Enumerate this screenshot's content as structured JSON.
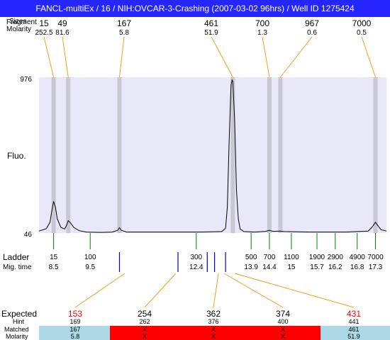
{
  "title": "FANCL-multiEx / 16 / NIH:OVCAR-3-Crashing (2007-03-02 96hrs) / Well ID 1275424",
  "labels": {
    "fragment_row": "Fragment",
    "size_row": "Sizes",
    "molarity_row": "Molarity",
    "y_axis": "Fluo.",
    "ladder_row": "Ladder",
    "migtime_row": "Mig. time",
    "expected_row": "Expected",
    "hint_row": "Hint",
    "matched_row": "Matched",
    "molarity_bottom_row": "Molarity"
  },
  "colors": {
    "title_bar": "#2525ff",
    "plot_background": "#e8e8f8",
    "peak_band": "#c8c8d4",
    "connector": "#f0a020",
    "ladder_tick": "#008000",
    "fragment_tick": "#0000cc",
    "matched_ok": "#add8e6",
    "matched_fail": "#ff0000",
    "expected_highlight": "#ff0000"
  },
  "chart_data": {
    "type": "line",
    "ylabel": "Fluo.",
    "ylim": [
      46,
      976
    ],
    "y_ticks": [
      "976",
      "46"
    ],
    "xlim_migtime": [
      8.1,
      17.6
    ],
    "top_peaks": [
      {
        "size": "15",
        "molarity": "252.5",
        "migtime": 8.5
      },
      {
        "size": "49",
        "molarity": "81.6",
        "migtime": 8.9
      },
      {
        "size": "167",
        "molarity": "5.8",
        "migtime": 10.3
      },
      {
        "size": "461",
        "molarity": "51.9",
        "migtime": 13.4
      },
      {
        "size": "700",
        "molarity": "1.3",
        "migtime": 14.4
      },
      {
        "size": "967",
        "molarity": "0.6",
        "migtime": 14.7
      },
      {
        "size": "7000",
        "molarity": "0.5",
        "migtime": 17.3
      }
    ],
    "ladder": [
      {
        "size": "15",
        "migtime": "8.5"
      },
      {
        "size": "100",
        "migtime": "9.5"
      },
      {
        "size": "300",
        "migtime": "12.4"
      },
      {
        "size": "500",
        "migtime": "13.9"
      },
      {
        "size": "700",
        "migtime": "14.4"
      },
      {
        "size": "1100",
        "migtime": "15"
      },
      {
        "size": "1900",
        "migtime": "15.7"
      },
      {
        "size": "2900",
        "migtime": "16.2"
      },
      {
        "size": "4900",
        "migtime": "16.8"
      },
      {
        "size": "7000",
        "migtime": "17.3"
      }
    ],
    "fragment_ticks_migtime": [
      10.3,
      11.9,
      12.7,
      12.9,
      13.2
    ],
    "trace": [
      [
        8.1,
        58
      ],
      [
        8.3,
        72
      ],
      [
        8.4,
        110
      ],
      [
        8.45,
        180
      ],
      [
        8.5,
        235
      ],
      [
        8.55,
        200
      ],
      [
        8.6,
        130
      ],
      [
        8.7,
        80
      ],
      [
        8.8,
        70
      ],
      [
        8.85,
        90
      ],
      [
        8.9,
        120
      ],
      [
        8.95,
        110
      ],
      [
        9.05,
        80
      ],
      [
        9.2,
        60
      ],
      [
        9.4,
        52
      ],
      [
        9.8,
        50
      ],
      [
        10.1,
        52
      ],
      [
        10.25,
        62
      ],
      [
        10.3,
        78
      ],
      [
        10.35,
        62
      ],
      [
        10.5,
        52
      ],
      [
        11.5,
        52
      ],
      [
        12.5,
        52
      ],
      [
        13.1,
        55
      ],
      [
        13.2,
        75
      ],
      [
        13.25,
        200
      ],
      [
        13.3,
        600
      ],
      [
        13.35,
        930
      ],
      [
        13.38,
        960
      ],
      [
        13.4,
        950
      ],
      [
        13.45,
        720
      ],
      [
        13.5,
        300
      ],
      [
        13.55,
        130
      ],
      [
        13.6,
        70
      ],
      [
        13.7,
        55
      ],
      [
        14.0,
        52
      ],
      [
        14.3,
        56
      ],
      [
        14.4,
        62
      ],
      [
        14.5,
        56
      ],
      [
        14.7,
        58
      ],
      [
        14.8,
        55
      ],
      [
        15.5,
        52
      ],
      [
        16.5,
        52
      ],
      [
        17.1,
        58
      ],
      [
        17.2,
        80
      ],
      [
        17.3,
        110
      ],
      [
        17.35,
        95
      ],
      [
        17.45,
        66
      ],
      [
        17.6,
        58
      ]
    ]
  },
  "bottom_table": [
    {
      "expected": "153",
      "hint": "169",
      "matched": "167",
      "molarity": "5.8",
      "status": "ok",
      "expected_red": true
    },
    {
      "expected": "254",
      "hint": "262",
      "matched": "X",
      "molarity": "X",
      "status": "fail",
      "expected_red": false
    },
    {
      "expected": "362",
      "hint": "376",
      "matched": "X",
      "molarity": "X",
      "status": "fail",
      "expected_red": false
    },
    {
      "expected": "374",
      "hint": "400",
      "matched": "X",
      "molarity": "X",
      "status": "fail",
      "expected_red": false
    },
    {
      "expected": "431",
      "hint": "441",
      "matched": "461",
      "molarity": "51.9",
      "status": "ok",
      "expected_red": true
    }
  ]
}
